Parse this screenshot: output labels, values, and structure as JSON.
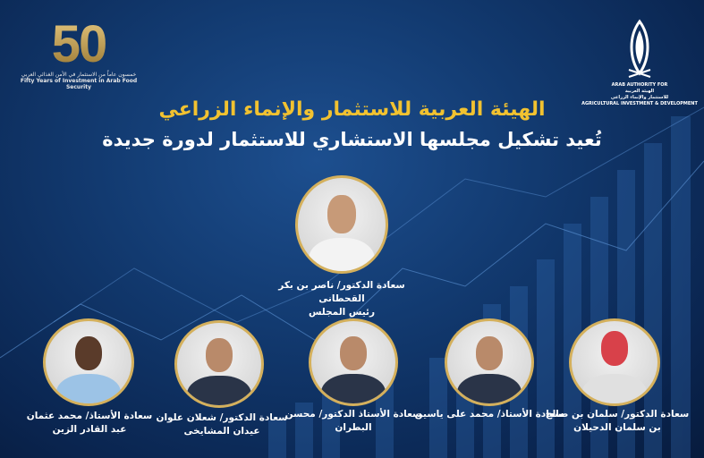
{
  "logo_50": {
    "number": "50",
    "arabic": "خمسون عاماً من الاستثمار في الأمن الغذائي العربي",
    "english": "Fifty Years of Investment in Arab Food Security"
  },
  "aaaid_logo": {
    "en_top": "ARAB AUTHORITY FOR",
    "ar_top": "الهيئة العربية",
    "ar_bottom": "للاستثمار والإنماء الزراعي",
    "en_bottom": "AGRICULTURAL INVESTMENT & DEVELOPMENT"
  },
  "title": "الهيئة العربية للاستثمار والإنماء الزراعي",
  "subtitle": "تُعيد تشكيل مجلسها الاستشاري للاستثمار لدورة جديدة",
  "chairman": {
    "line1": "سعادة الدكتور/ ناصر بن بكر القحطانى",
    "line2": "رئيس المجلس"
  },
  "members": [
    {
      "line1": "سعادة الأستاذ/ محمد عثمان",
      "line2": "عبد القادر الزين"
    },
    {
      "line1": "سعادة الدكتور/ شعلان علوان",
      "line2": "عيدان المشايخى"
    },
    {
      "line1": "سعادة الأستاذ الدكتور/ محسن البطران",
      "line2": ""
    },
    {
      "line1": "سعادة الأستاذ/ محمد على ياسين",
      "line2": ""
    },
    {
      "line1": "سعادة الدكتور/ سلمان بن صالح",
      "line2": "بن سلمان الدحيلان"
    }
  ],
  "colors": {
    "title": "#f2c230",
    "gold": "#d4b05c",
    "background": "#123a70"
  }
}
